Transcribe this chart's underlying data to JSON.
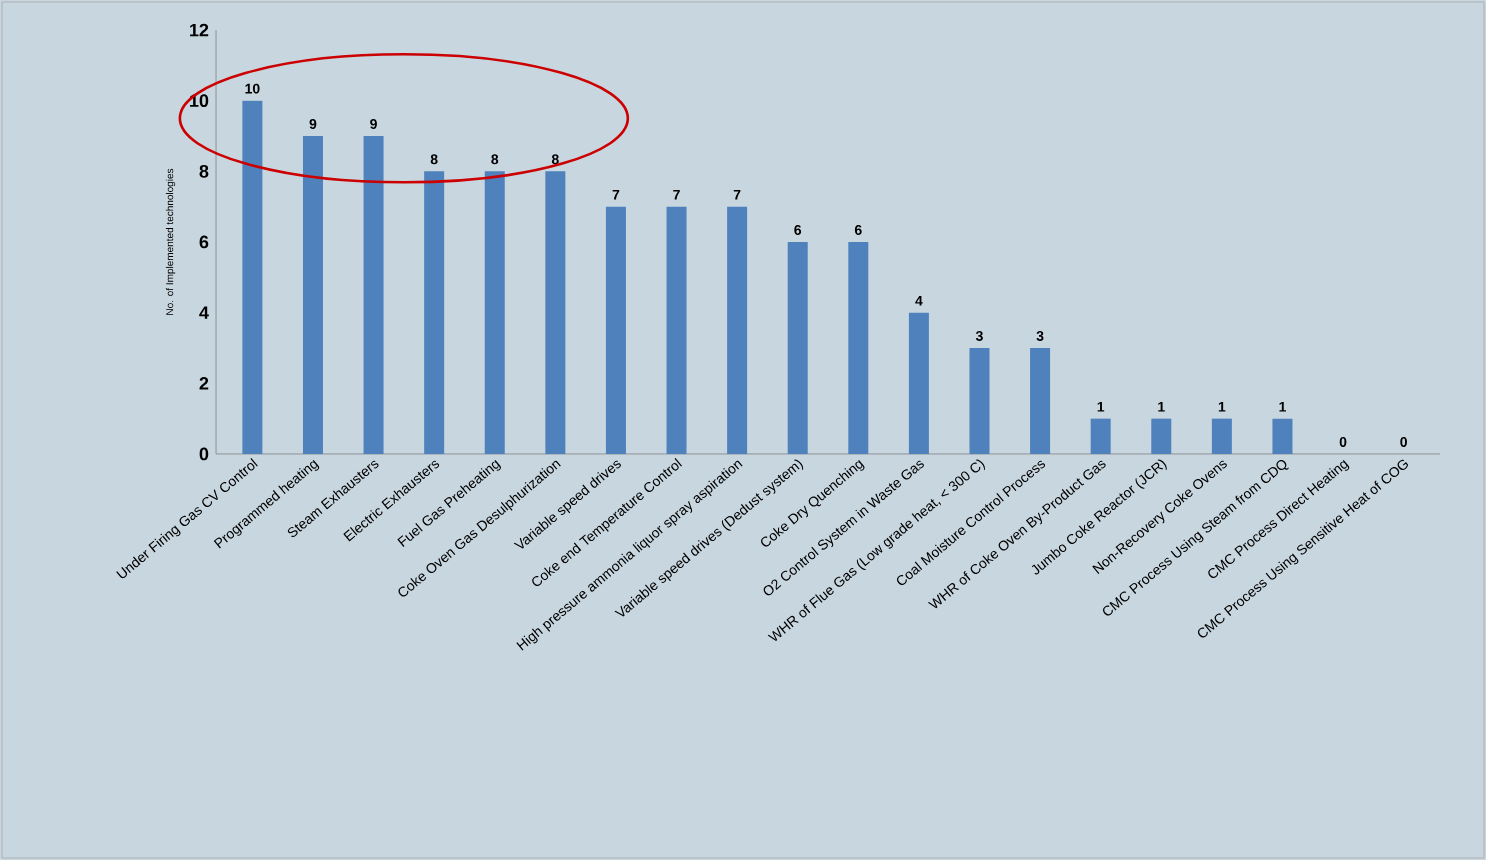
{
  "chart_data": {
    "type": "bar",
    "ylabel": "No. of Implemented technologies",
    "categories": [
      "Under Firing Gas CV Control",
      "Programmed heating",
      "Steam Exhausters",
      "Electric Exhausters",
      "Fuel Gas Preheating",
      "Coke Oven Gas Desulphurization",
      "Variable speed drives",
      "Coke end Temperature Control",
      "High pressure ammonia liquor spray aspiration",
      "Variable speed drives (Dedust system)",
      "Coke Dry Quenching",
      "O2 Control System in Waste Gas",
      "WHR of Flue Gas (Low grade heat, < 300 C)",
      "Coal Moisture Control Process",
      "WHR of Coke Oven By-Product Gas",
      "Jumbo Coke Reactor (JCR)",
      "Non-Recovery Coke Ovens",
      "CMC Process Using Steam from CDQ",
      "CMC Process Direct Heating",
      "CMC Process Using Sensitive Heat of COG"
    ],
    "values": [
      10,
      9,
      9,
      8,
      8,
      8,
      7,
      7,
      7,
      6,
      6,
      4,
      3,
      3,
      1,
      1,
      1,
      1,
      0,
      0
    ],
    "color": "#4f81bd",
    "ylim": [
      0,
      12
    ],
    "yticks": [
      0,
      2,
      4,
      6,
      8,
      10,
      12
    ],
    "data_labels": true
  }
}
